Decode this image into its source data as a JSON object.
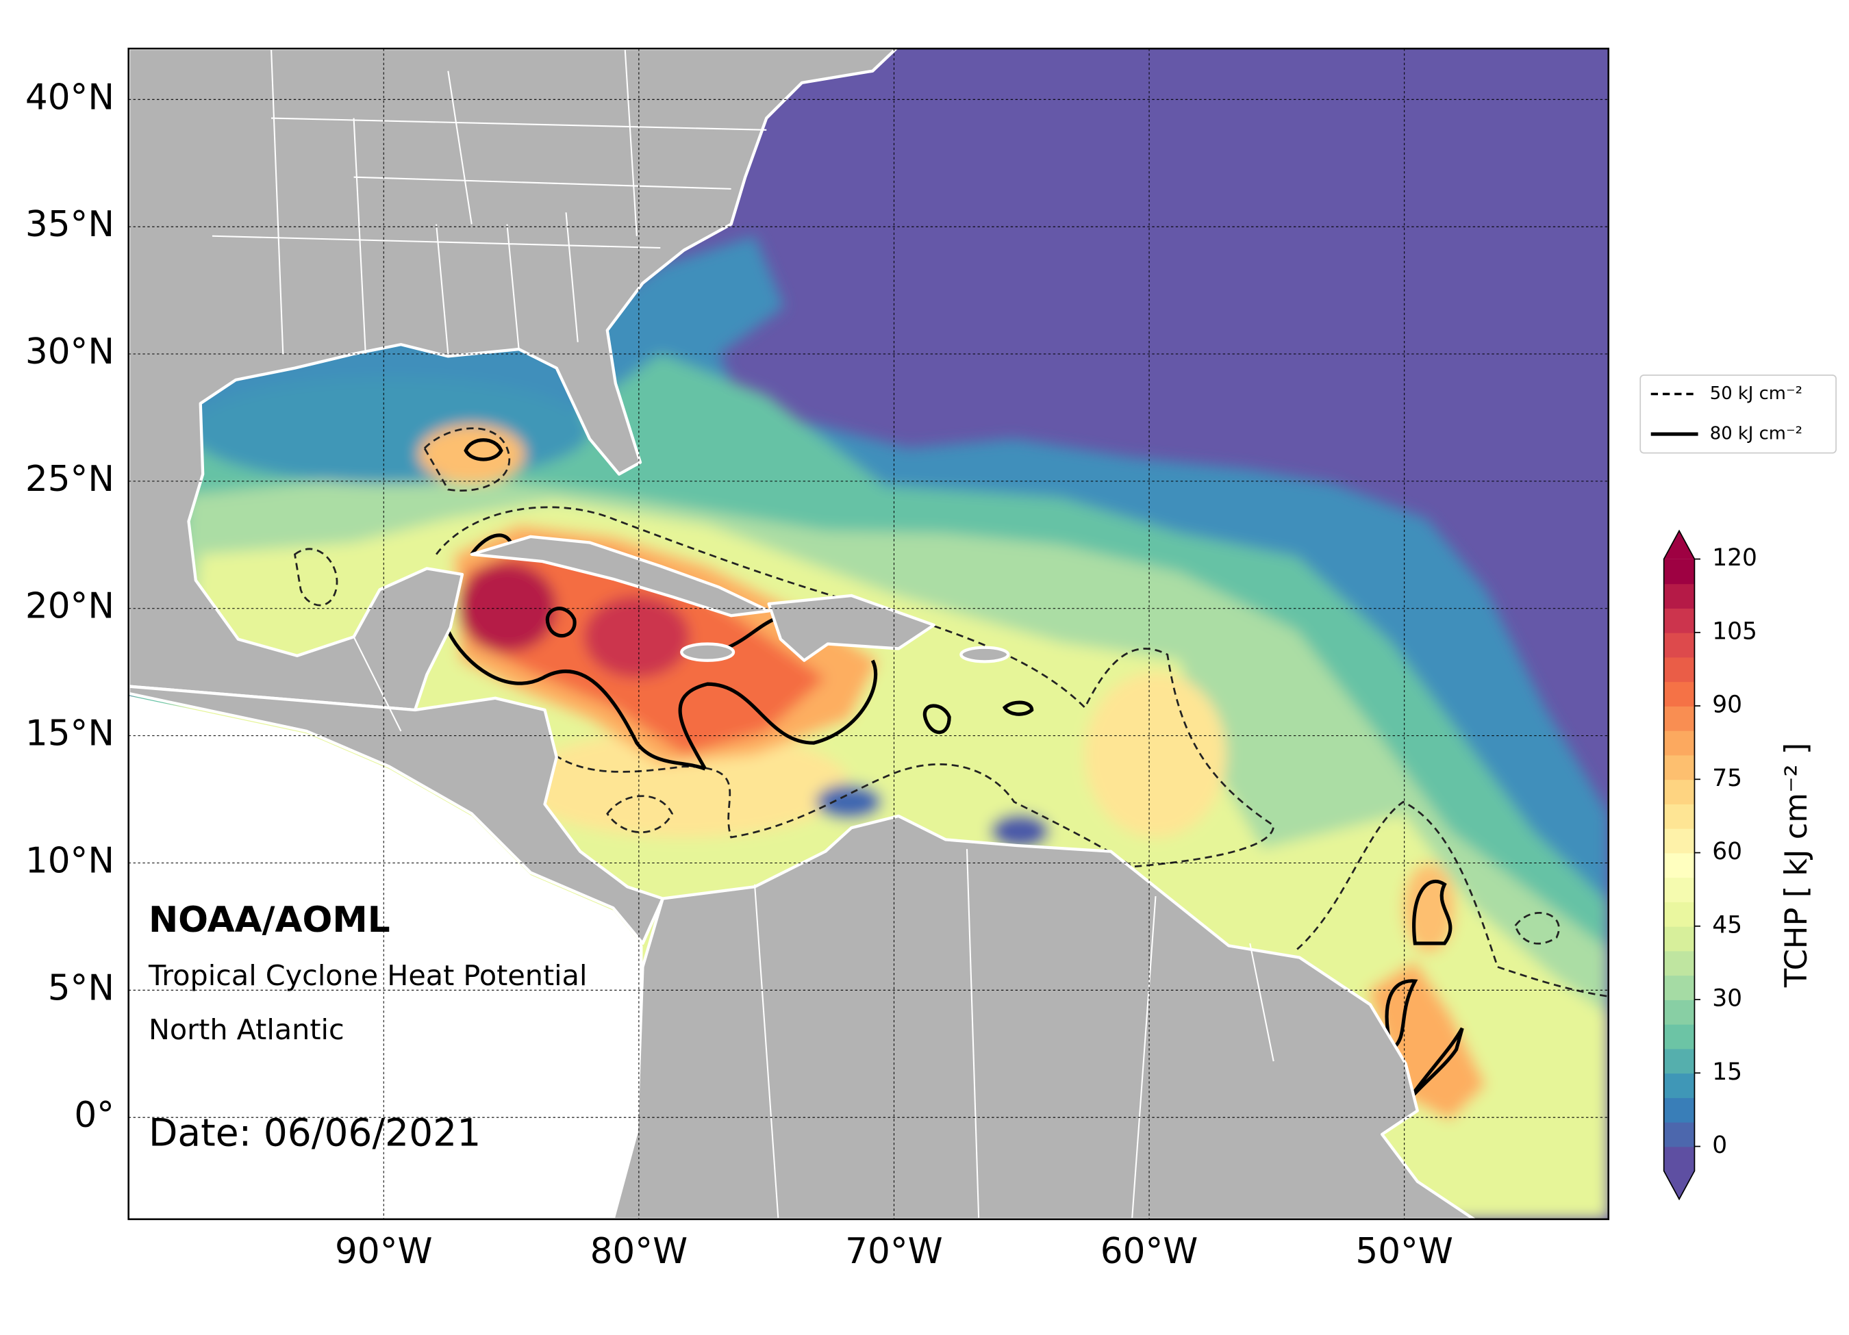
{
  "chart_data": {
    "type": "map",
    "xlim": [
      -100,
      -42
    ],
    "ylim": [
      -4,
      42
    ],
    "xticks": [
      {
        "value": -90,
        "label": "90°W"
      },
      {
        "value": -80,
        "label": "80°W"
      },
      {
        "value": -70,
        "label": "70°W"
      },
      {
        "value": -60,
        "label": "60°W"
      },
      {
        "value": -50,
        "label": "50°W"
      }
    ],
    "yticks": [
      {
        "value": 0,
        "label": "0°"
      },
      {
        "value": 5,
        "label": "5°N"
      },
      {
        "value": 10,
        "label": "10°N"
      },
      {
        "value": 15,
        "label": "15°N"
      },
      {
        "value": 20,
        "label": "20°N"
      },
      {
        "value": 25,
        "label": "25°N"
      },
      {
        "value": 30,
        "label": "30°N"
      },
      {
        "value": 35,
        "label": "35°N"
      },
      {
        "value": 40,
        "label": "40°N"
      }
    ],
    "grid": true,
    "legend": {
      "position": "right",
      "entries": [
        {
          "name": "50 kJ cm⁻²",
          "style": "dashed"
        },
        {
          "name": "80 kJ cm⁻²",
          "style": "solid"
        }
      ]
    },
    "colorbar": {
      "label": "TCHP [ kJ cm⁻² ]",
      "lim": [
        -5,
        120
      ],
      "ticks": [
        0,
        15,
        30,
        45,
        60,
        75,
        90,
        105,
        120
      ],
      "extend": "both",
      "colors": [
        "#5e4fa2",
        "#4c67ad",
        "#397eb8",
        "#3f97b7",
        "#55afad",
        "#6cc4a5",
        "#88cfa4",
        "#a5dba4",
        "#bfe5a0",
        "#d7ef9b",
        "#eaf79f",
        "#f5fbaf",
        "#ffffbf",
        "#fef2a9",
        "#fee594",
        "#fed481",
        "#fdbf6f",
        "#fca95f",
        "#f98e52",
        "#f57246",
        "#ea5d47",
        "#dd4a4c",
        "#cc344d",
        "#b51a47",
        "#9e0142"
      ]
    },
    "annotations": [
      "NOAA/AOML",
      "Tropical Cyclone Heat Potential",
      "North Atlantic",
      "Date: 06/06/2021"
    ]
  }
}
